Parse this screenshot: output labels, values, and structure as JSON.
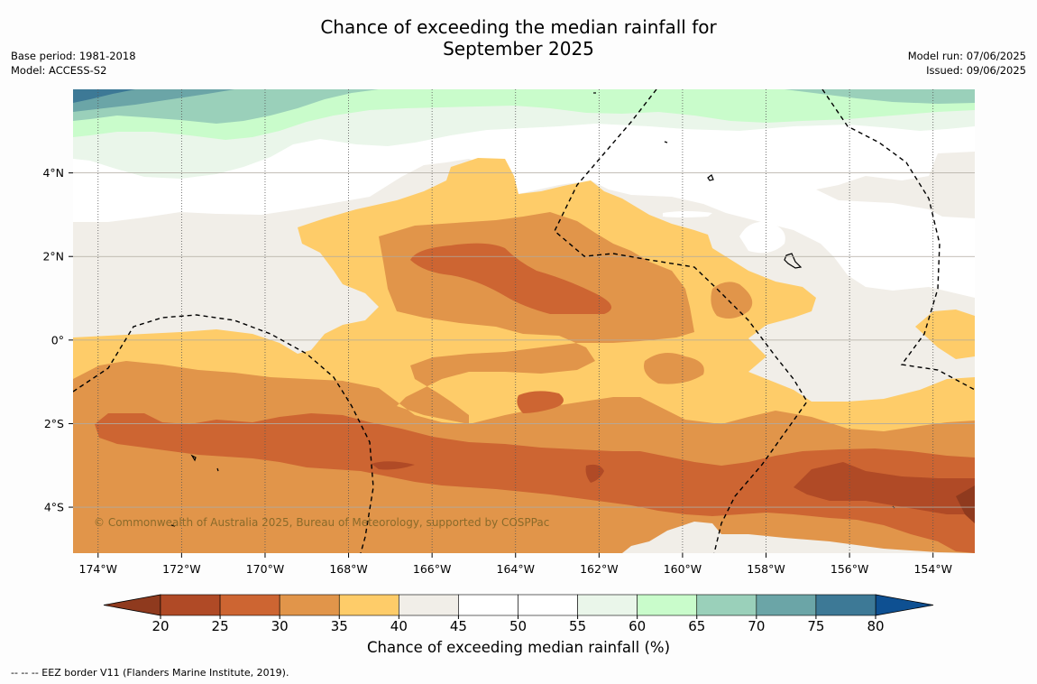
{
  "title_line1": "Chance of exceeding the median rainfall for",
  "title_line2": "September 2025",
  "meta_left": [
    "Base period: 1981-2018",
    "Model: ACCESS-S2"
  ],
  "meta_right": [
    "Model run: 07/06/2025",
    "Issued: 09/06/2025"
  ],
  "copyright": "© Commonwealth of Australia 2025, Bureau of Meteorology, supported by COSPPac",
  "footnote": "--  --  -- EEZ border V11 (Flanders Marine Institute, 2019).",
  "colorbar": {
    "title": "Chance of exceeding median rainfall (%)",
    "ticks": [
      "20",
      "25",
      "30",
      "35",
      "40",
      "45",
      "50",
      "55",
      "60",
      "65",
      "70",
      "75",
      "80"
    ],
    "colors": [
      "#aa4725",
      "#b04a26",
      "#cd6532",
      "#e1954a",
      "#fecc69",
      "#f1eee8",
      "#ffffff",
      "#ffffff",
      "#eaf6ea",
      "#c9fccb",
      "#9ad0ba",
      "#6ba5a7",
      "#3d7996",
      "#0e5092"
    ],
    "extend_low_color": "#8f3a1e",
    "extend_high_color": "#0e5092"
  },
  "map": {
    "lon_labels": [
      "174°W",
      "172°W",
      "170°W",
      "168°W",
      "166°W",
      "164°W",
      "162°W",
      "160°W",
      "158°W",
      "156°W",
      "154°W"
    ],
    "lat_labels": [
      "4°N",
      "2°N",
      "0°",
      "2°S",
      "4°S"
    ],
    "lon_range": [
      -174.6,
      -153.0
    ],
    "lat_range": [
      -5.1,
      6.0
    ],
    "lon_ticks": [
      -174,
      -172,
      -170,
      -168,
      -166,
      -164,
      -162,
      -160,
      -158,
      -156,
      -154
    ],
    "lat_ticks": [
      4,
      2,
      0,
      -2,
      -4
    ],
    "colors": {
      "c20_25": "#b04a26",
      "c25_30": "#cd6532",
      "c30_35": "#e1954a",
      "c35_40": "#fecc69",
      "c40_45": "#f1eee8",
      "c45_55": "#ffffff",
      "c55_60": "#eaf6ea",
      "c60_65": "#c9fccb",
      "c65_70": "#9ad0ba",
      "c70_75": "#6ba5a7",
      "c75_80": "#3d7996"
    }
  }
}
